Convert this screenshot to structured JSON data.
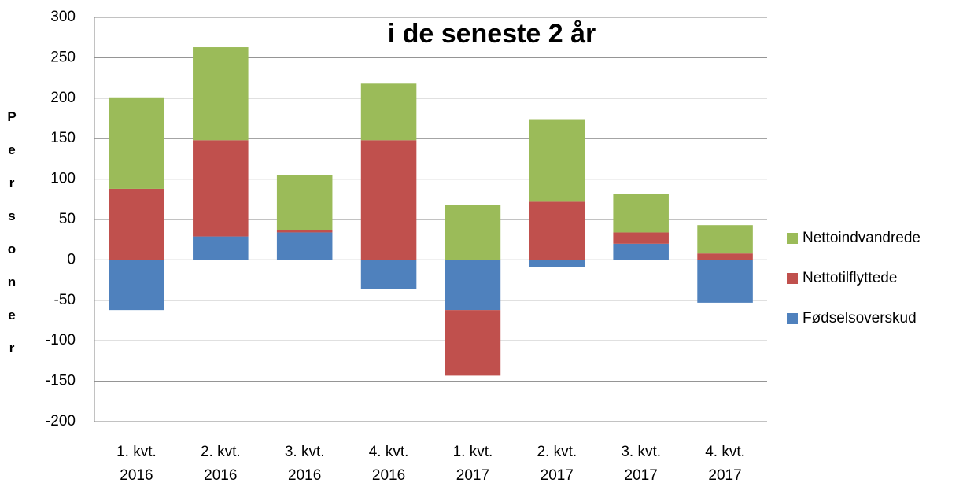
{
  "chart_data": {
    "type": "stacked-bar",
    "title": "i de seneste 2 år",
    "y_label": "Personer",
    "categories": [
      [
        "1. kvt.",
        "2016"
      ],
      [
        "2. kvt.",
        "2016"
      ],
      [
        "3. kvt.",
        "2016"
      ],
      [
        "4. kvt.",
        "2016"
      ],
      [
        "1. kvt.",
        "2017"
      ],
      [
        "2. kvt.",
        "2017"
      ],
      [
        "3. kvt.",
        "2017"
      ],
      [
        "4. kvt.",
        "2017"
      ]
    ],
    "series": [
      {
        "name": "Fødselsoverskud",
        "color": "#4f81bd",
        "values": [
          -62,
          29,
          34,
          -36,
          -62,
          -9,
          20,
          -53
        ]
      },
      {
        "name": "Nettotilflyttede",
        "color": "#c0504d",
        "values": [
          88,
          119,
          3,
          148,
          -81,
          72,
          14,
          8
        ]
      },
      {
        "name": "Nettoindvandrede",
        "color": "#9bbb59",
        "values": [
          113,
          115,
          68,
          70,
          68,
          102,
          48,
          35
        ]
      }
    ],
    "ylim": [
      -200,
      300
    ],
    "yticks": [
      -200,
      -150,
      -100,
      -50,
      0,
      50,
      100,
      150,
      200,
      250,
      300
    ],
    "grid": true,
    "legend": "right"
  }
}
